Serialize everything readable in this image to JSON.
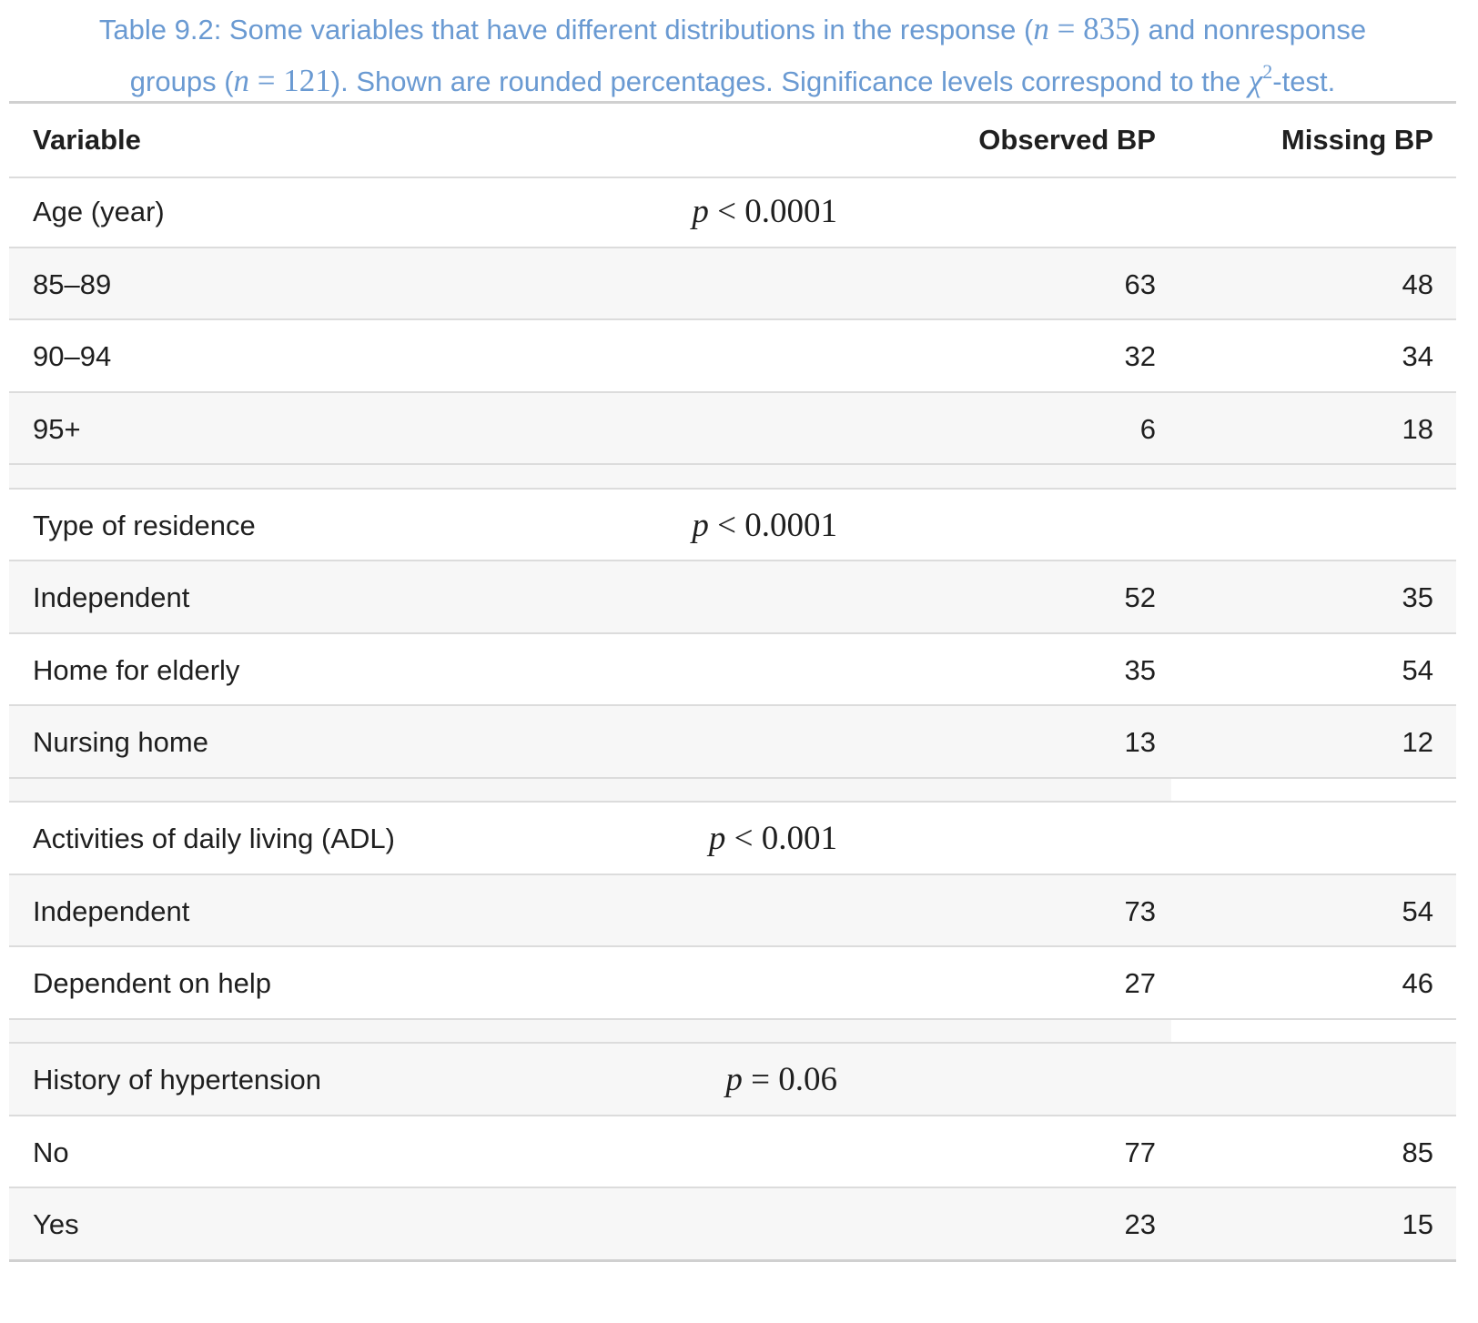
{
  "caption": {
    "line1_prefix": "Table 9.2: Some variables that have different distributions in the response (",
    "line1_math_var": "n",
    "line1_math_rest": " = 835",
    "line1_suffix": ") and nonresponse",
    "line2_prefix": "groups (",
    "line2_math_var": "n",
    "line2_math_rest": " = 121",
    "line2_middle": "). Shown are rounded percentages. Significance levels correspond to the ",
    "line2_chi": "χ",
    "line2_sup": "2",
    "line2_suffix": "-test."
  },
  "table": {
    "headers": {
      "variable": "Variable",
      "observed": "Observed BP",
      "missing": "Missing BP"
    },
    "groups": [
      {
        "label": "Age (year)",
        "p_var": "p",
        "p_rest": " < 0.0001",
        "rows": [
          {
            "label": "85–89",
            "observed": "63",
            "missing": "48"
          },
          {
            "label": "90–94",
            "observed": "32",
            "missing": "34"
          },
          {
            "label": "95+",
            "observed": "6",
            "missing": "18"
          }
        ]
      },
      {
        "label": "Type of residence",
        "p_var": "p",
        "p_rest": " < 0.0001",
        "rows": [
          {
            "label": "Independent",
            "observed": "52",
            "missing": "35"
          },
          {
            "label": "Home for elderly",
            "observed": "35",
            "missing": "54"
          },
          {
            "label": "Nursing home",
            "observed": "13",
            "missing": "12"
          }
        ]
      },
      {
        "label": "Activities of daily living (ADL)",
        "p_var": "p",
        "p_rest": " < 0.001",
        "rows": [
          {
            "label": "Independent",
            "observed": "73",
            "missing": "54"
          },
          {
            "label": "Dependent on help",
            "observed": "27",
            "missing": "46"
          }
        ]
      },
      {
        "label": "History of hypertension",
        "p_var": "p",
        "p_rest": " = 0.06",
        "rows": [
          {
            "label": "No",
            "observed": "77",
            "missing": "85"
          },
          {
            "label": "Yes",
            "observed": "23",
            "missing": "15"
          }
        ]
      }
    ]
  }
}
